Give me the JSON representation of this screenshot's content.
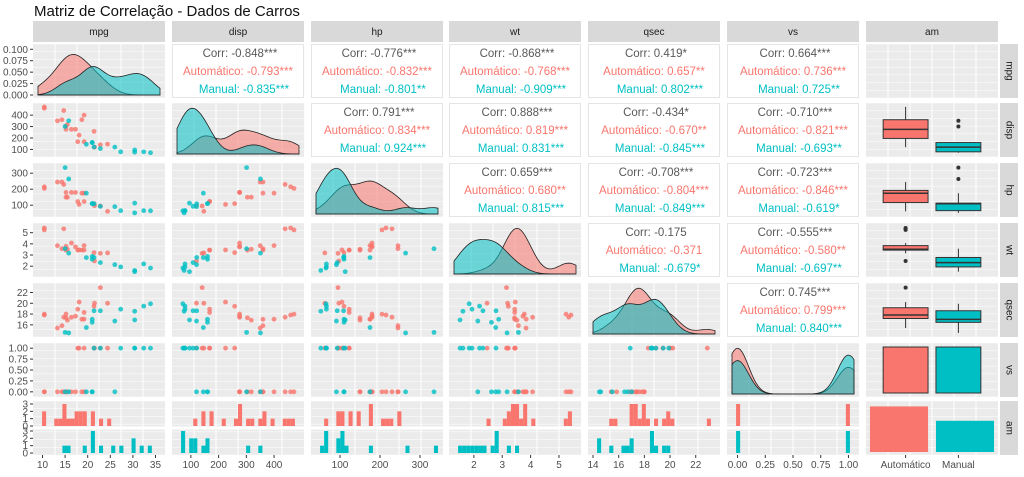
{
  "title": "Matriz de Correlação - Dados de Carros",
  "colors": {
    "automatico": "#F8766D",
    "manual": "#00BFC4",
    "corr_text": "#595959",
    "panel_bg": "#EBEBEB",
    "strip_bg": "#D9D9D9",
    "grid": "#FFFFFF"
  },
  "chart_data": {
    "type": "scatter",
    "title": "Matriz de Correlação - Dados de Carros",
    "variables": [
      "mpg",
      "disp",
      "hp",
      "wt",
      "qsec",
      "vs",
      "am"
    ],
    "groups": [
      "Automático",
      "Manual"
    ],
    "legend": "none",
    "grid": true,
    "column_strips": [
      "mpg",
      "disp",
      "hp",
      "wt",
      "qsec",
      "vs",
      "am"
    ],
    "row_strips": [
      "mpg",
      "disp",
      "hp",
      "wt",
      "qsec",
      "vs",
      "am"
    ],
    "x_axes": [
      {
        "var": "mpg",
        "range": [
          9,
          36
        ],
        "ticks": [
          10,
          15,
          20,
          25,
          30,
          35
        ]
      },
      {
        "var": "disp",
        "range": [
          50,
          490
        ],
        "ticks": [
          100,
          200,
          300,
          400
        ]
      },
      {
        "var": "hp",
        "range": [
          40,
          345
        ],
        "ticks": [
          100,
          200,
          300
        ]
      },
      {
        "var": "wt",
        "range": [
          1.3,
          5.6
        ],
        "ticks": [
          2,
          3,
          4,
          5
        ]
      },
      {
        "var": "qsec",
        "range": [
          14,
          23.5
        ],
        "ticks": [
          14,
          16,
          18,
          20,
          22
        ]
      },
      {
        "var": "vs",
        "range": [
          -0.05,
          1.05
        ],
        "ticks": [
          "0.00",
          "0.25",
          "0.50",
          "0.75",
          "1.00"
        ]
      },
      {
        "var": "am",
        "categories": [
          "Automático",
          "Manual"
        ]
      }
    ],
    "y_axes": [
      {
        "var": "mpg",
        "range": [
          0,
          0.105
        ],
        "ticks": [
          "0.000",
          "0.025",
          "0.050",
          "0.075",
          "0.100"
        ]
      },
      {
        "var": "disp",
        "range": [
          60,
          480
        ],
        "ticks": [
          100,
          200,
          300,
          400
        ]
      },
      {
        "var": "hp",
        "range": [
          45,
          345
        ],
        "ticks": [
          100,
          200,
          300
        ]
      },
      {
        "var": "wt",
        "range": [
          1.3,
          5.6
        ],
        "ticks": [
          2,
          3,
          4,
          5
        ]
      },
      {
        "var": "qsec",
        "range": [
          14.3,
          23.2
        ],
        "ticks": [
          16,
          18,
          20,
          22
        ]
      },
      {
        "var": "vs",
        "range": [
          -0.05,
          1.05
        ],
        "ticks": [
          "0.00",
          "0.25",
          "0.50",
          "0.75",
          "1.00"
        ]
      },
      {
        "var": "am",
        "ticks_top": [
          0,
          1,
          2,
          3
        ],
        "ticks_bottom": [
          0,
          1,
          2,
          3
        ]
      }
    ],
    "correlations": [
      {
        "row": "mpg",
        "col": "disp",
        "corr": "Corr: -0.848***",
        "auto": "Automático: -0.793***",
        "manual": "Manual: -0.835***"
      },
      {
        "row": "mpg",
        "col": "hp",
        "corr": "Corr: -0.776***",
        "auto": "Automático: -0.832***",
        "manual": "Manual: -0.801**"
      },
      {
        "row": "mpg",
        "col": "wt",
        "corr": "Corr: -0.868***",
        "auto": "Automático: -0.768***",
        "manual": "Manual: -0.909***"
      },
      {
        "row": "mpg",
        "col": "qsec",
        "corr": "Corr: 0.419*",
        "auto": "Automático: 0.657**",
        "manual": "Manual: 0.802***"
      },
      {
        "row": "mpg",
        "col": "vs",
        "corr": "Corr: 0.664***",
        "auto": "Automático: 0.736***",
        "manual": "Manual: 0.725**"
      },
      {
        "row": "disp",
        "col": "hp",
        "corr": "Corr: 0.791***",
        "auto": "Automático: 0.834***",
        "manual": "Manual: 0.924***"
      },
      {
        "row": "disp",
        "col": "wt",
        "corr": "Corr: 0.888***",
        "auto": "Automático: 0.819***",
        "manual": "Manual: 0.831***"
      },
      {
        "row": "disp",
        "col": "qsec",
        "corr": "Corr: -0.434*",
        "auto": "Automático: -0.670**",
        "manual": "Manual: -0.845***"
      },
      {
        "row": "disp",
        "col": "vs",
        "corr": "Corr: -0.710***",
        "auto": "Automático: -0.821***",
        "manual": "Manual: -0.693**"
      },
      {
        "row": "hp",
        "col": "wt",
        "corr": "Corr: 0.659***",
        "auto": "Automático: 0.680**",
        "manual": "Manual: 0.815***"
      },
      {
        "row": "hp",
        "col": "qsec",
        "corr": "Corr: -0.708***",
        "auto": "Automático: -0.804***",
        "manual": "Manual: -0.849***"
      },
      {
        "row": "hp",
        "col": "vs",
        "corr": "Corr: -0.723***",
        "auto": "Automático: -0.846***",
        "manual": "Manual: -0.619*"
      },
      {
        "row": "wt",
        "col": "qsec",
        "corr": "Corr: -0.175",
        "auto": "Automático: -0.371",
        "manual": "Manual: -0.679*"
      },
      {
        "row": "wt",
        "col": "vs",
        "corr": "Corr: -0.555***",
        "auto": "Automático: -0.580**",
        "manual": "Manual: -0.697**"
      },
      {
        "row": "qsec",
        "col": "vs",
        "corr": "Corr: 0.745***",
        "auto": "Automático: 0.799***",
        "manual": "Manual: 0.840***"
      }
    ],
    "series": [
      {
        "name": "Automático",
        "mpg": [
          21.4,
          18.7,
          18.1,
          14.3,
          24.4,
          22.8,
          19.2,
          17.8,
          16.4,
          17.3,
          15.2,
          10.4,
          10.4,
          14.7,
          21.5,
          15.5,
          15.2,
          13.3,
          19.2
        ],
        "disp": [
          258,
          360,
          225,
          360,
          146.7,
          140.8,
          167.6,
          167.6,
          275.8,
          275.8,
          275.8,
          472,
          460,
          440,
          120.1,
          318,
          304,
          350,
          400
        ],
        "hp": [
          110,
          175,
          105,
          245,
          62,
          95,
          123,
          123,
          180,
          180,
          180,
          205,
          215,
          230,
          97,
          150,
          150,
          245,
          175
        ],
        "wt": [
          3.215,
          3.44,
          3.46,
          3.57,
          3.19,
          3.15,
          3.44,
          3.44,
          4.07,
          3.73,
          3.78,
          5.25,
          5.424,
          5.345,
          2.465,
          3.52,
          3.435,
          3.84,
          3.845
        ],
        "qsec": [
          19.44,
          17.02,
          20.22,
          15.84,
          20,
          22.9,
          18.3,
          18.9,
          17.4,
          17.6,
          18,
          17.98,
          17.82,
          17.42,
          20.01,
          16.87,
          17.3,
          15.41,
          17.05
        ],
        "vs": [
          1,
          0,
          1,
          0,
          1,
          1,
          1,
          1,
          0,
          0,
          0,
          0,
          0,
          0,
          1,
          0,
          0,
          0,
          0
        ]
      },
      {
        "name": "Manual",
        "mpg": [
          21,
          21,
          22.8,
          32.4,
          30.4,
          33.9,
          27.3,
          26,
          30.4,
          15.8,
          19.7,
          15,
          21.4
        ],
        "disp": [
          160,
          160,
          108,
          78.7,
          75.7,
          71.1,
          79,
          120.3,
          95.1,
          351,
          145,
          301,
          121
        ],
        "hp": [
          110,
          110,
          93,
          66,
          52,
          65,
          66,
          91,
          113,
          264,
          175,
          335,
          109
        ],
        "wt": [
          2.62,
          2.875,
          2.32,
          2.2,
          1.615,
          1.835,
          1.935,
          2.14,
          1.513,
          3.17,
          2.77,
          3.57,
          2.78
        ],
        "qsec": [
          16.46,
          17.02,
          18.61,
          19.47,
          18.52,
          19.9,
          18.9,
          16.7,
          16.9,
          14.5,
          15.5,
          14.6,
          18.6
        ],
        "vs": [
          0,
          0,
          1,
          1,
          1,
          1,
          1,
          0,
          1,
          0,
          0,
          0,
          1
        ]
      }
    ],
    "am_counts": {
      "Automático": 19,
      "Manual": 13
    }
  }
}
